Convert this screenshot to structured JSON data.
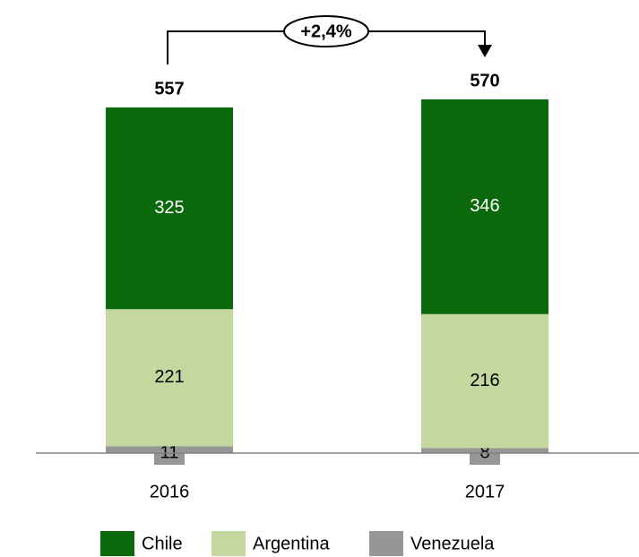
{
  "chart_data": {
    "type": "stacked_bar",
    "categories": [
      "2016",
      "2017"
    ],
    "series": [
      {
        "name": "Chile",
        "color": "#0b690b",
        "values": [
          325,
          346
        ]
      },
      {
        "name": "Argentina",
        "color": "#c4d79f",
        "values": [
          221,
          216
        ]
      },
      {
        "name": "Venezuela",
        "color": "#969696",
        "values": [
          11,
          8
        ]
      }
    ],
    "totals": [
      557,
      570
    ],
    "annotation": "+2,4%",
    "legend": "bottom"
  }
}
